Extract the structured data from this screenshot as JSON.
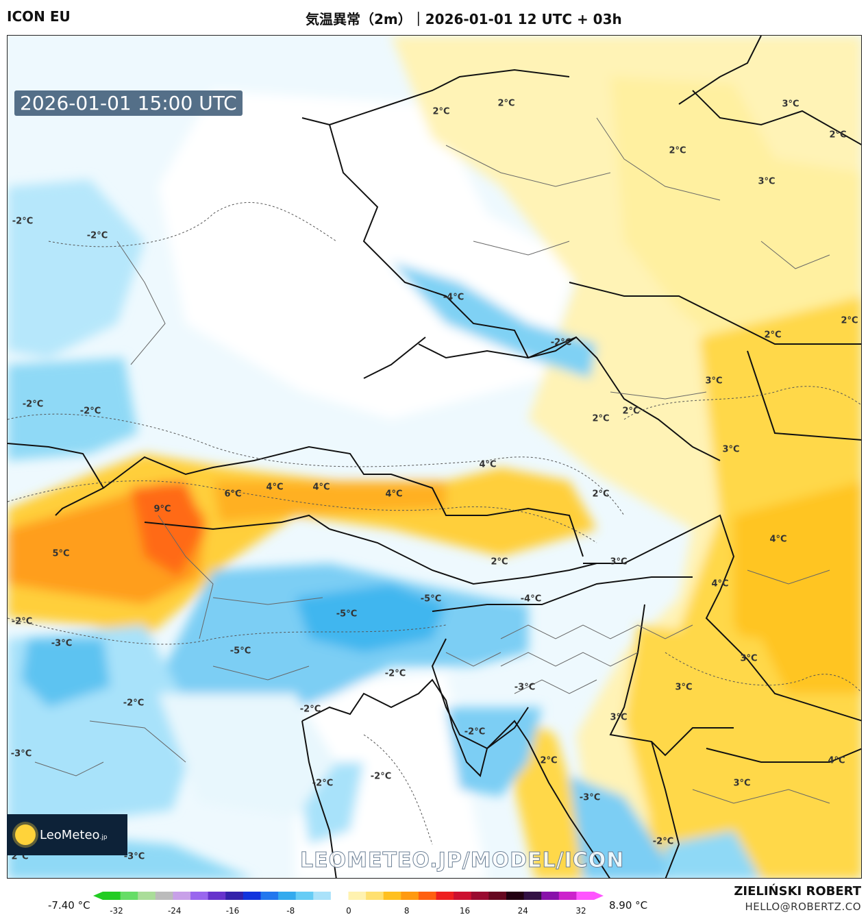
{
  "header": {
    "model": "ICON EU",
    "title": "気温異常（2m）｜2026-01-01 12 UTC + 03h"
  },
  "map": {
    "valid_time": "2026-01-01 15:00 UTC",
    "watermark": "LEOMETEO.JP/MODEL/ICON",
    "logo_text": "LeoMeteo",
    "logo_suffix": ".jp",
    "labels": [
      "2°C",
      "2°C",
      "3°C",
      "2°C",
      "2°C",
      "3°C",
      "-2°C",
      "-2°C",
      "-4°C",
      "-2°C",
      "2°C",
      "2°C",
      "3°C",
      "2°C",
      "2°C",
      "3°C",
      "-2°C",
      "-2°C",
      "4°C",
      "9°C",
      "6°C",
      "4°C",
      "4°C",
      "4°C",
      "2°C",
      "5°C",
      "4°C",
      "2°C",
      "3°C",
      "4°C",
      "-5°C",
      "-4°C",
      "-2°C",
      "-3°C",
      "-5°C",
      "-5°C",
      "-2°C",
      "-3°C",
      "3°C",
      "-2°C",
      "-3°C",
      "3°C",
      "-2°C",
      "-2°C",
      "-2°C",
      "2°C",
      "-2°C",
      "3°C",
      "4°C",
      "3°C",
      "-3°C",
      "-2°C",
      "2°C",
      "-3°C"
    ]
  },
  "colorbar": {
    "min_label": "-7.40 °C",
    "max_label": "8.90 °C",
    "ticks": [
      "-32",
      "-24",
      "-16",
      "-8",
      "0",
      "8",
      "16",
      "24",
      "32"
    ],
    "colors": [
      "#22cc22",
      "#66dd66",
      "#aadd99",
      "#bbbbbb",
      "#c8a0e8",
      "#9966ee",
      "#6633cc",
      "#3322aa",
      "#1133dd",
      "#2277ee",
      "#33aaee",
      "#66ccf5",
      "#aae2fa",
      "#ffffff",
      "#fff2b0",
      "#ffe070",
      "#ffc020",
      "#ff9a10",
      "#ff6010",
      "#ee2020",
      "#cc1030",
      "#990a30",
      "#660820",
      "#220011",
      "#331144",
      "#8811aa",
      "#cc22cc",
      "#ff55ff"
    ]
  },
  "footer": {
    "author": "ZIELIŃSKI ROBERT",
    "email": "HELLO@ROBERTZ.CO"
  }
}
